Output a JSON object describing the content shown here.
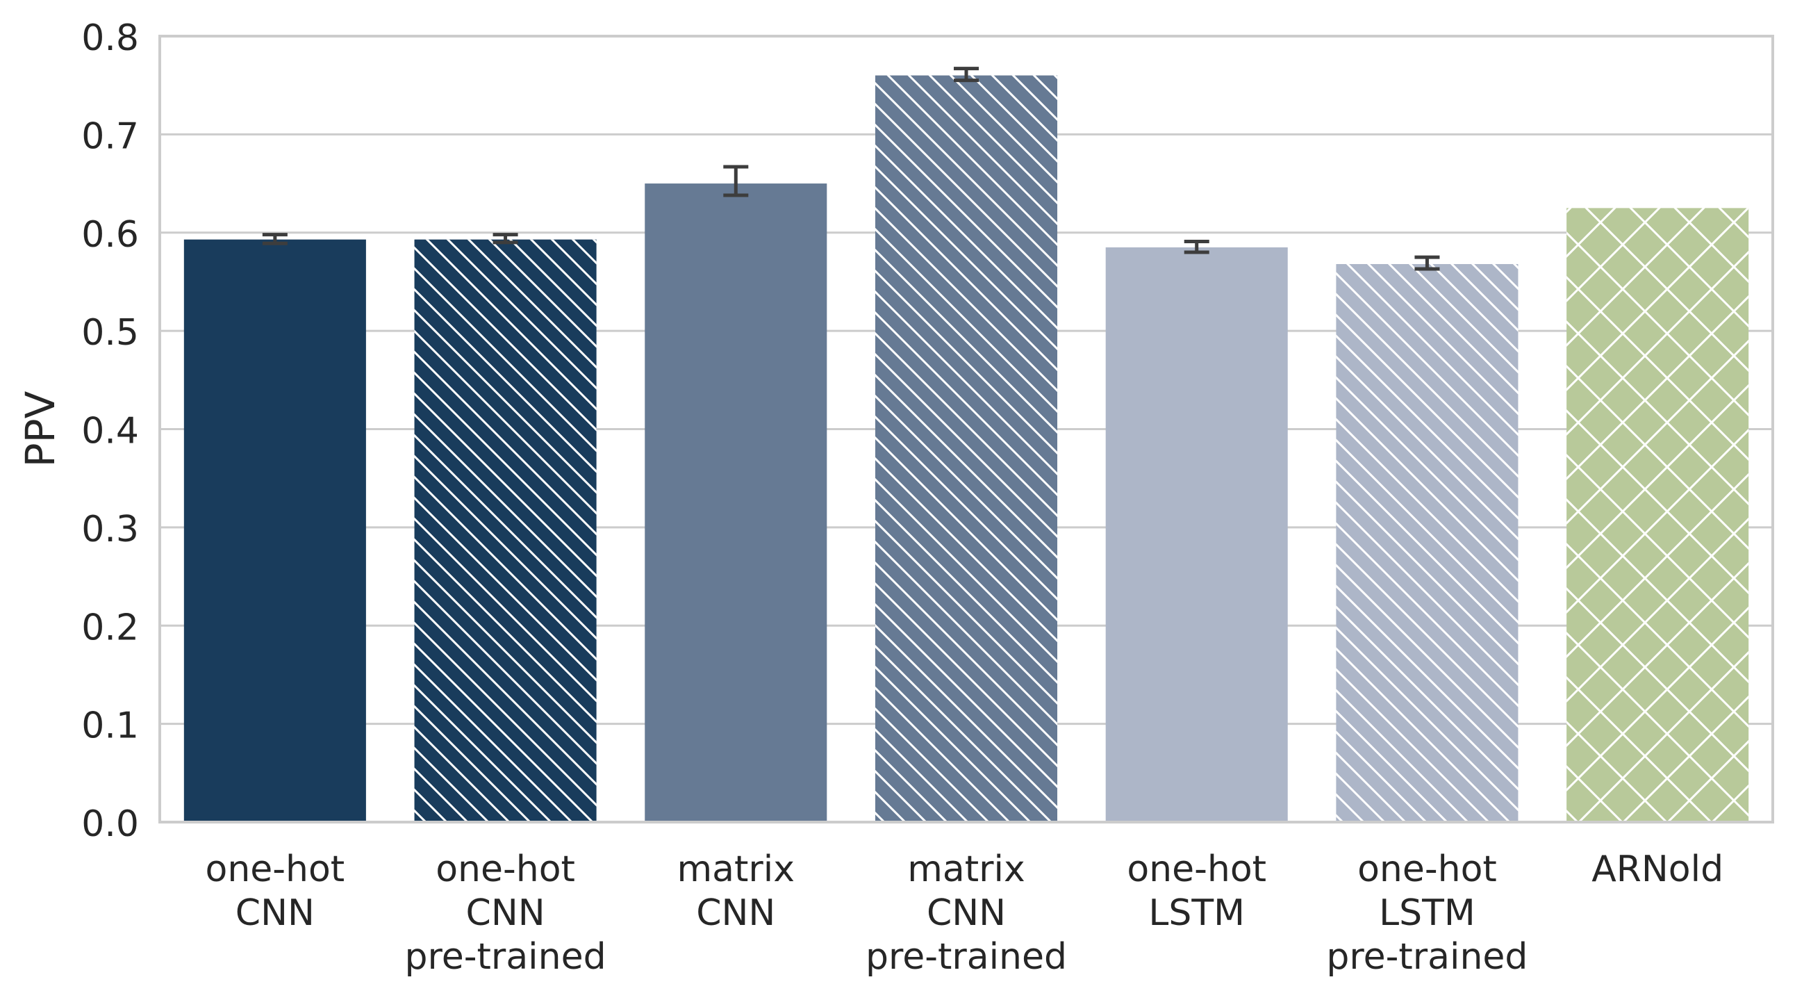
{
  "chart_data": {
    "type": "bar",
    "title": "",
    "xlabel": "",
    "ylabel": "PPV",
    "ylim": [
      0,
      0.8
    ],
    "yticks": [
      "0.0",
      "0.1",
      "0.2",
      "0.3",
      "0.4",
      "0.5",
      "0.6",
      "0.7",
      "0.8"
    ],
    "grid": "horizontal",
    "categories": [
      [
        "one-hot",
        "CNN"
      ],
      [
        "one-hot",
        "CNN",
        "pre-trained"
      ],
      [
        "matrix",
        "CNN"
      ],
      [
        "matrix",
        "CNN",
        "pre-trained"
      ],
      [
        "one-hot",
        "LSTM"
      ],
      [
        "one-hot",
        "LSTM",
        "pre-trained"
      ],
      [
        "ARNold"
      ]
    ],
    "values": [
      0.593,
      0.593,
      0.65,
      0.76,
      0.585,
      0.568,
      0.625
    ],
    "error_low": [
      0.589,
      0.59,
      0.638,
      0.755,
      0.58,
      0.563,
      null
    ],
    "error_high": [
      0.598,
      0.598,
      0.667,
      0.767,
      0.591,
      0.575,
      null
    ],
    "colors": [
      "#193c5c",
      "#193c5c",
      "#667a94",
      "#667a94",
      "#adb6c8",
      "#adb6c8",
      "#b8c99a"
    ],
    "hatches": [
      "none",
      "diagonal",
      "none",
      "diagonal",
      "none",
      "diagonal",
      "crosshatch"
    ]
  }
}
